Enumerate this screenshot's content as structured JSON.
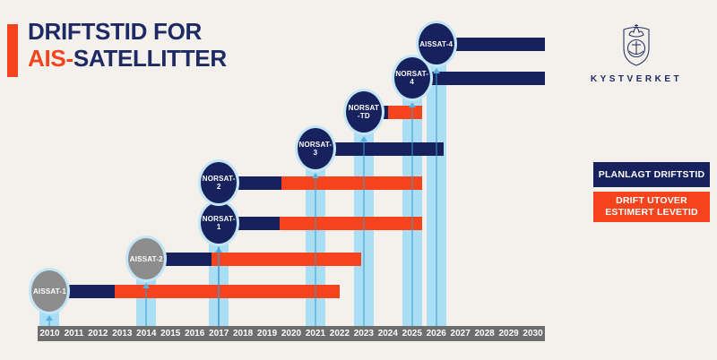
{
  "title": {
    "line1": "DRIFTSTID FOR",
    "line2_accent": "AIS-",
    "line2_rest": "SATELLITTER"
  },
  "logo": {
    "wordmark": "KYSTVERKET",
    "emblem": "kystverket-crest-crown-anchor-shield"
  },
  "colors": {
    "background": "#f4f1ec",
    "navy": "#16215d",
    "orange": "#f4431d",
    "light_blue_band": "#aadef5",
    "band_line": "#57b0dd",
    "gray_circle": "#8d8d8d",
    "circle_ring": "#c3e6f6",
    "axis_gray": "#6e6d6d",
    "title_navy": "#1d2a64"
  },
  "chart_data": {
    "type": "bar",
    "subtype": "horizontal-timeline-gantt",
    "title": "DRIFTSTID FOR AIS-SATELLITTER",
    "x_axis": {
      "start_year": 2010,
      "end_year": 2030,
      "tick_labels": [
        "2010",
        "2011",
        "2012",
        "2013",
        "2014",
        "2015",
        "2016",
        "2017",
        "2018",
        "2019",
        "2020",
        "2021",
        "2022",
        "2023",
        "2024",
        "2025",
        "2026",
        "2027",
        "2028",
        "2029",
        "2030"
      ]
    },
    "legend": [
      {
        "label": "PLANLAGT DRIFTSTID",
        "color": "#16215d",
        "label_lines": [
          "PLANLAGT DRIFTSTID"
        ]
      },
      {
        "label": "DRIFT UTOVER ESTIMERT LEVETID",
        "color": "#f4431d",
        "label_lines": [
          "DRIFT UTOVER",
          "ESTIMERT LEVETID"
        ]
      }
    ],
    "legend_position": "right",
    "satellites": [
      {
        "name": "AISSAT-1",
        "label_lines": [
          "AISSAT-1"
        ],
        "launch_year": 2010,
        "planned_until": 2012.7,
        "operated_until": 2022.0,
        "marker": "gray"
      },
      {
        "name": "AISSAT-2",
        "label_lines": [
          "AISSAT-2"
        ],
        "launch_year": 2014,
        "planned_until": 2016.7,
        "operated_until": 2022.9,
        "marker": "gray"
      },
      {
        "name": "NORSAT-1",
        "label_lines": [
          "NORSAT-1"
        ],
        "launch_year": 2017,
        "planned_until": 2019.5,
        "operated_until": 2025.4,
        "marker": "navy"
      },
      {
        "name": "NORSAT-2",
        "label_lines": [
          "NORSAT-2"
        ],
        "launch_year": 2017,
        "planned_until": 2019.6,
        "operated_until": 2025.4,
        "marker": "navy"
      },
      {
        "name": "NORSAT-3",
        "label_lines": [
          "NORSAT-3"
        ],
        "launch_year": 2021,
        "planned_until": 2026.3,
        "operated_until": null,
        "marker": "navy"
      },
      {
        "name": "NORSAT-TD",
        "label_lines": [
          "NORSAT",
          "-TD"
        ],
        "launch_year": 2023,
        "planned_until": 2024.0,
        "operated_until": 2025.4,
        "marker": "navy"
      },
      {
        "name": "NORSAT-4",
        "label_lines": [
          "NORSAT-4"
        ],
        "launch_year": 2025,
        "planned_until": 2030.5,
        "operated_until": null,
        "marker": "navy"
      },
      {
        "name": "AISSAT-4",
        "label_lines": [
          "AISSAT-4"
        ],
        "launch_year": 2026,
        "planned_until": 2030.5,
        "operated_until": null,
        "marker": "navy"
      }
    ]
  }
}
